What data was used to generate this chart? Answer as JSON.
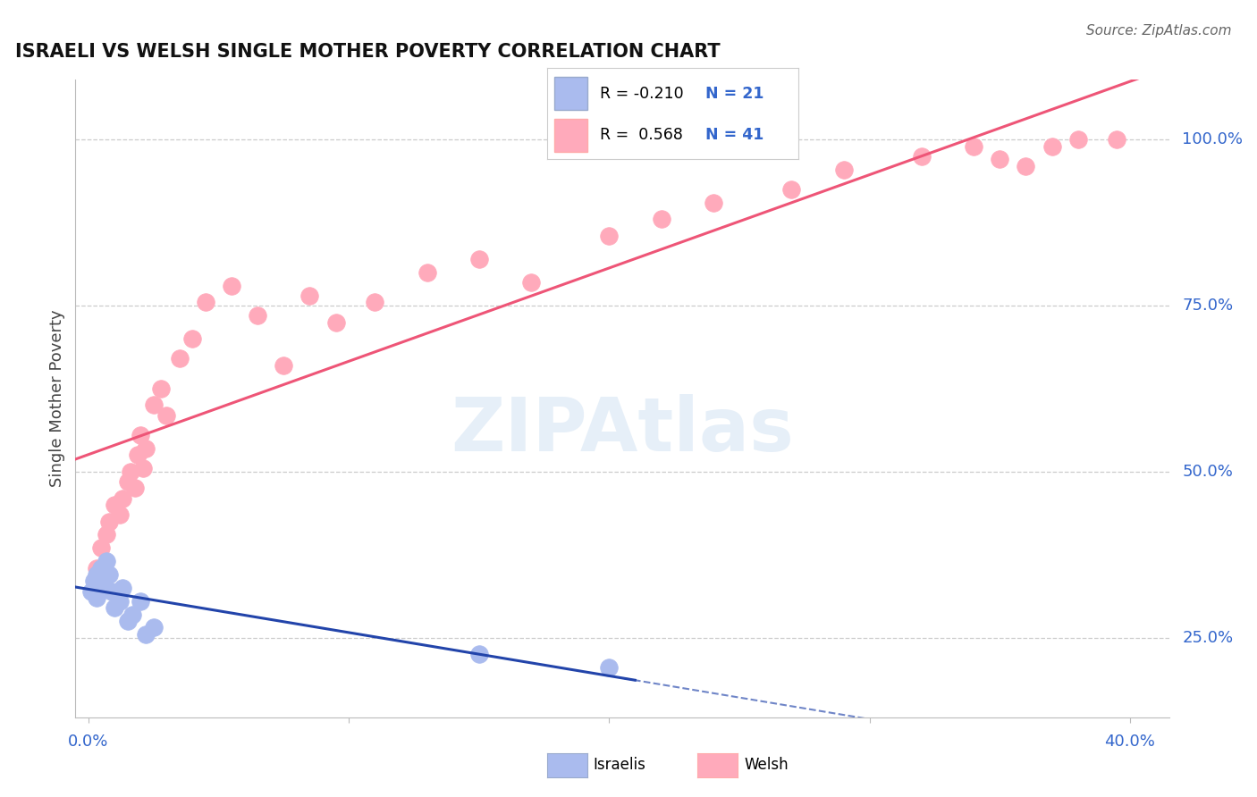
{
  "title": "ISRAELI VS WELSH SINGLE MOTHER POVERTY CORRELATION CHART",
  "source": "Source: ZipAtlas.com",
  "ylabel": "Single Mother Poverty",
  "xlim": [
    -0.005,
    0.415
  ],
  "ylim": [
    0.13,
    1.09
  ],
  "yticks_right": [
    0.25,
    0.5,
    0.75,
    1.0
  ],
  "ytick_labels_right": [
    "25.0%",
    "50.0%",
    "75.0%",
    "100.0%"
  ],
  "legend_R_israeli": "-0.210",
  "legend_N_israeli": "21",
  "legend_R_welsh": "0.568",
  "legend_N_welsh": "41",
  "israeli_color": "#AABBEE",
  "welsh_color": "#FFAABB",
  "trend_israeli_color": "#2244AA",
  "trend_welsh_color": "#EE5577",
  "background_color": "#FFFFFF",
  "grid_color": "#CCCCCC",
  "title_color": "#111111",
  "axis_label_color": "#3366CC",
  "israeli_x": [
    0.001,
    0.002,
    0.003,
    0.003,
    0.004,
    0.005,
    0.005,
    0.006,
    0.007,
    0.008,
    0.009,
    0.01,
    0.012,
    0.013,
    0.015,
    0.017,
    0.02,
    0.022,
    0.025,
    0.15,
    0.2
  ],
  "israeli_y": [
    0.32,
    0.335,
    0.31,
    0.345,
    0.32,
    0.335,
    0.355,
    0.34,
    0.365,
    0.345,
    0.32,
    0.295,
    0.305,
    0.325,
    0.275,
    0.285,
    0.305,
    0.255,
    0.265,
    0.225,
    0.205
  ],
  "welsh_x": [
    0.003,
    0.005,
    0.007,
    0.008,
    0.01,
    0.012,
    0.013,
    0.015,
    0.016,
    0.018,
    0.019,
    0.02,
    0.021,
    0.022,
    0.025,
    0.028,
    0.03,
    0.035,
    0.04,
    0.045,
    0.055,
    0.065,
    0.075,
    0.085,
    0.095,
    0.11,
    0.13,
    0.15,
    0.17,
    0.2,
    0.22,
    0.24,
    0.27,
    0.29,
    0.32,
    0.34,
    0.35,
    0.36,
    0.37,
    0.38,
    0.395
  ],
  "welsh_y": [
    0.355,
    0.385,
    0.405,
    0.425,
    0.45,
    0.435,
    0.46,
    0.485,
    0.5,
    0.475,
    0.525,
    0.555,
    0.505,
    0.535,
    0.6,
    0.625,
    0.585,
    0.67,
    0.7,
    0.755,
    0.78,
    0.735,
    0.66,
    0.765,
    0.725,
    0.755,
    0.8,
    0.82,
    0.785,
    0.855,
    0.88,
    0.905,
    0.925,
    0.955,
    0.975,
    0.99,
    0.97,
    0.96,
    0.99,
    1.0,
    1.0
  ],
  "xticks": [
    0.0,
    0.1,
    0.2,
    0.3,
    0.4
  ]
}
